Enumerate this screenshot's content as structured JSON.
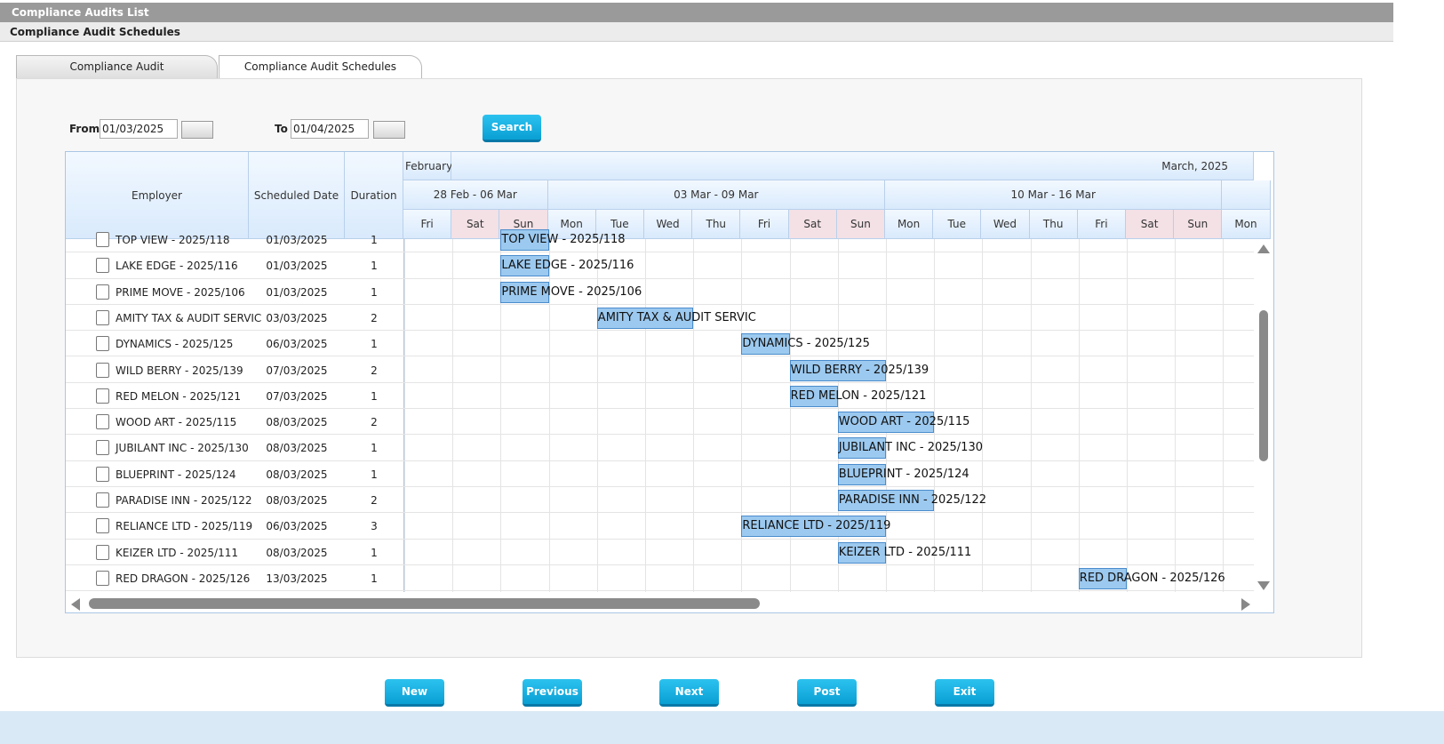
{
  "header": {
    "title": "Compliance Audits List",
    "subtitle": "Compliance Audit Schedules"
  },
  "tabs": [
    "Compliance Audit",
    "Compliance Audit Schedules"
  ],
  "filters": {
    "from_label": "From",
    "from_value": "01/03/2025",
    "to_label": "To",
    "to_value": "01/04/2025",
    "search": "Search"
  },
  "grid": {
    "columns": [
      "Employer",
      "Scheduled Date",
      "Duration"
    ],
    "months": [
      "February,",
      "March, 2025"
    ],
    "weeks": [
      "28 Feb - 06 Mar",
      "03 Mar - 09 Mar",
      "10 Mar - 16 Mar"
    ],
    "days": [
      "Fri",
      "Sat",
      "Sun",
      "Mon",
      "Tue",
      "Wed",
      "Thu",
      "Fri",
      "Sat",
      "Sun",
      "Mon",
      "Tue",
      "Wed",
      "Thu",
      "Fri",
      "Sat",
      "Sun",
      "Mon"
    ],
    "rows": [
      {
        "employer": "TOP VIEW - 2025/118",
        "scheduled_date": "01/03/2025",
        "duration": 1
      },
      {
        "employer": "LAKE EDGE - 2025/116",
        "scheduled_date": "01/03/2025",
        "duration": 1
      },
      {
        "employer": "PRIME MOVE - 2025/106",
        "scheduled_date": "01/03/2025",
        "duration": 1
      },
      {
        "employer": "AMITY TAX & AUDIT SERVIC",
        "scheduled_date": "03/03/2025",
        "duration": 2
      },
      {
        "employer": "DYNAMICS - 2025/125",
        "scheduled_date": "06/03/2025",
        "duration": 1
      },
      {
        "employer": "WILD BERRY - 2025/139",
        "scheduled_date": "07/03/2025",
        "duration": 2
      },
      {
        "employer": "RED MELON - 2025/121",
        "scheduled_date": "07/03/2025",
        "duration": 1
      },
      {
        "employer": "WOOD ART - 2025/115",
        "scheduled_date": "08/03/2025",
        "duration": 2
      },
      {
        "employer": "JUBILANT INC - 2025/130",
        "scheduled_date": "08/03/2025",
        "duration": 1
      },
      {
        "employer": "BLUEPRINT - 2025/124",
        "scheduled_date": "08/03/2025",
        "duration": 1
      },
      {
        "employer": "PARADISE INN - 2025/122",
        "scheduled_date": "08/03/2025",
        "duration": 2
      },
      {
        "employer": "RELIANCE LTD - 2025/119",
        "scheduled_date": "06/03/2025",
        "duration": 3
      },
      {
        "employer": "KEIZER LTD - 2025/111",
        "scheduled_date": "08/03/2025",
        "duration": 1
      },
      {
        "employer": "RED DRAGON - 2025/126",
        "scheduled_date": "13/03/2025",
        "duration": 1
      }
    ]
  },
  "buttons": [
    "New",
    "Previous",
    "Next",
    "Post",
    "Exit"
  ]
}
